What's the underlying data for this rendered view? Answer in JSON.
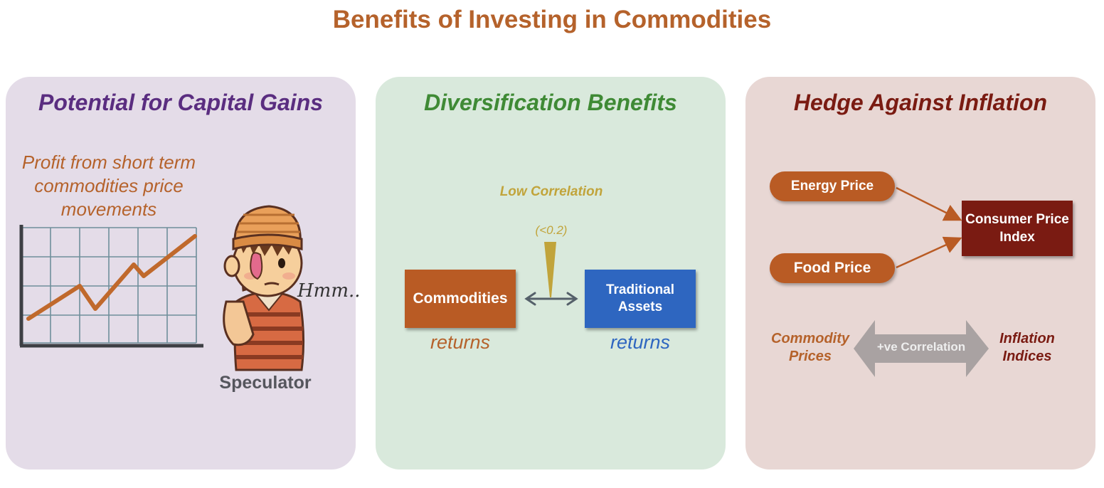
{
  "title": "Benefits of Investing in Commodities",
  "colors": {
    "accent_orange": "#b5622b",
    "purple": "#5a2d80",
    "green": "#3f8a35",
    "dark_red": "#7a1b12",
    "blue": "#2e66c0",
    "gold": "#c1a43b"
  },
  "panels": {
    "capital_gains": {
      "title": "Potential for Capital Gains",
      "profit_text": "Profit from short term commodities price movements",
      "speculator_label": "Speculator",
      "thought": "Hmm..",
      "icons": [
        "line-chart-icon",
        "speculator-character-icon"
      ]
    },
    "diversification": {
      "title": "Diversification Benefits",
      "commodities_label": "Commodities",
      "traditional_label": "Traditional Assets",
      "returns_left": "returns",
      "returns_right": "returns",
      "low_correlation": "Low Correlation",
      "correlation_value": "(<0.2)",
      "icons": [
        "double-arrow-icon",
        "correlation-wedge-icon"
      ]
    },
    "inflation_hedge": {
      "title": "Hedge Against Inflation",
      "energy_price": "Energy Price",
      "food_price": "Food Price",
      "cpi": "Consumer Price Index",
      "commodity_prices": "Commodity Prices",
      "positive_correlation": "+ve Correlation",
      "inflation_indices": "Inflation Indices",
      "icons": [
        "arrow-icon",
        "big-double-arrow-icon"
      ]
    }
  }
}
